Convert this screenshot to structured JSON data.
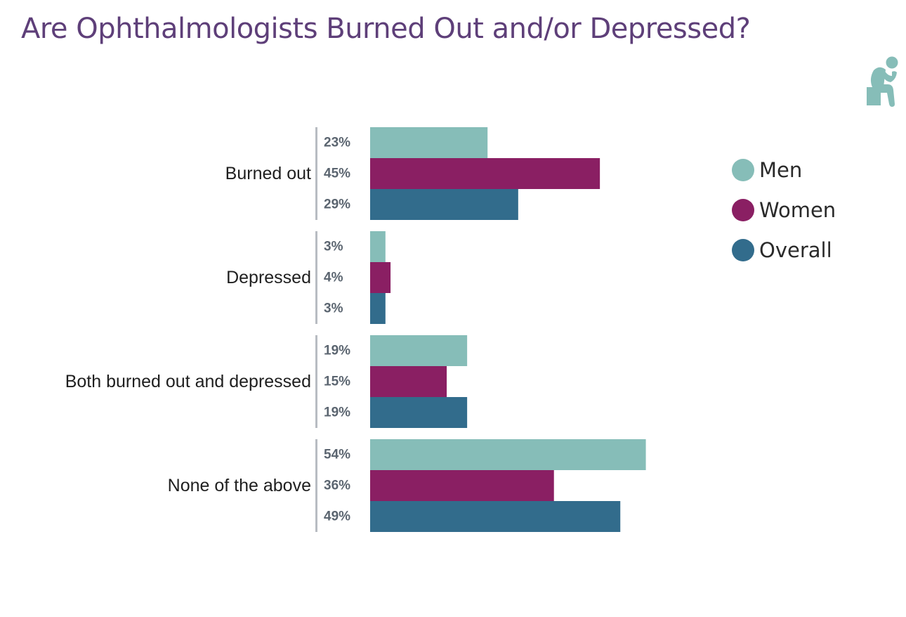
{
  "title": "Are Ophthalmologists Burned Out and/or Depressed?",
  "header_icon": {
    "name": "thinking-person-icon",
    "color": "#86bdb8"
  },
  "colors": {
    "men": "#86bdb8",
    "women": "#8a1f63",
    "overall": "#326c8c",
    "divider": "#b8bcc2"
  },
  "legend": [
    {
      "label": "Men",
      "color": "#86bdb8"
    },
    {
      "label": "Women",
      "color": "#8a1f63"
    },
    {
      "label": "Overall",
      "color": "#326c8c"
    }
  ],
  "chart_data": {
    "type": "bar",
    "orientation": "horizontal",
    "title": "Are Ophthalmologists Burned Out and/or Depressed?",
    "categories": [
      "Burned out",
      "Depressed",
      "Both burned out and depressed",
      "None of the above"
    ],
    "series": [
      {
        "name": "Men",
        "color": "#86bdb8",
        "values": [
          23,
          3,
          19,
          54
        ],
        "labels": [
          "23%",
          "3%",
          "19%",
          "54%"
        ]
      },
      {
        "name": "Women",
        "color": "#8a1f63",
        "values": [
          45,
          4,
          15,
          36
        ],
        "labels": [
          "45%",
          "4%",
          "15%",
          "36%"
        ]
      },
      {
        "name": "Overall",
        "color": "#326c8c",
        "values": [
          29,
          3,
          19,
          49
        ],
        "labels": [
          "29%",
          "3%",
          "19%",
          "49%"
        ]
      }
    ],
    "unit": "%",
    "xlim": [
      0,
      100
    ],
    "grid": false,
    "legend_position": "right"
  }
}
